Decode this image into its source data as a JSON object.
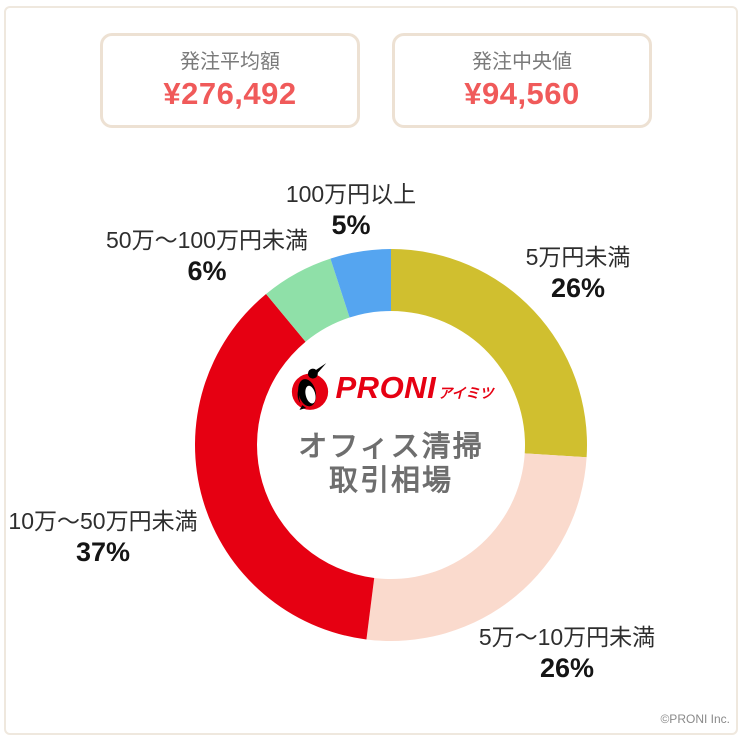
{
  "stats": {
    "cards": [
      {
        "label": "発注平均額",
        "value": "¥276,492"
      },
      {
        "label": "発注中央値",
        "value": "¥94,560"
      }
    ],
    "value_color": "#f05a5a"
  },
  "logo": {
    "brand": "PRONI",
    "sub": "アイミツ",
    "color": "#e60012"
  },
  "chart_data": {
    "type": "pie",
    "donut": true,
    "title": "オフィス清掃 取引相場",
    "center_lines": [
      "オフィス清掃",
      "取引相場"
    ],
    "legend_position": "around",
    "start_angle": "top, clockwise",
    "segments": [
      {
        "label": "5万円未満",
        "value": 26,
        "pct_label": "26%",
        "color": "#d0bf2f"
      },
      {
        "label": "5万〜10万円未満",
        "value": 26,
        "pct_label": "26%",
        "color": "#fadacd"
      },
      {
        "label": "10万〜50万円未満",
        "value": 37,
        "pct_label": "37%",
        "color": "#e60012"
      },
      {
        "label": "50万〜100万円未満",
        "value": 6,
        "pct_label": "6%",
        "color": "#8fe0a8"
      },
      {
        "label": "100万円以上",
        "value": 5,
        "pct_label": "5%",
        "color": "#55a5f0"
      }
    ]
  },
  "footer": {
    "text": "©PRONI Inc."
  }
}
